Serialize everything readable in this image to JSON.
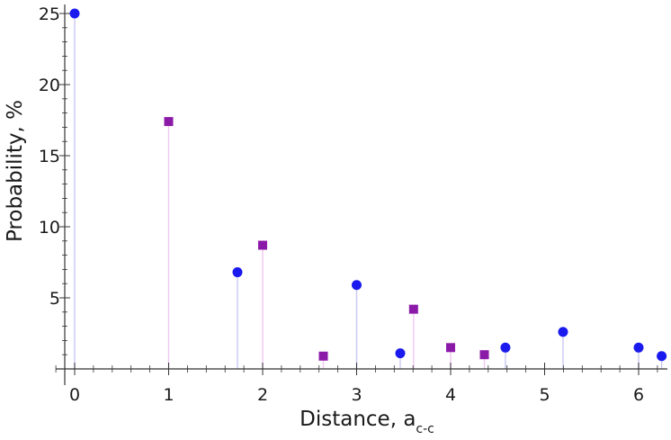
{
  "chart_data": {
    "type": "scatter",
    "xlabel": "Distance, a",
    "xlabel_subscript": "c-c",
    "ylabel": "Probability, %",
    "xlim": [
      -0.1,
      6.4
    ],
    "ylim": [
      0,
      25.8
    ],
    "x_ticks": [
      0,
      1,
      2,
      3,
      4,
      5,
      6
    ],
    "y_ticks": [
      5,
      10,
      15,
      20,
      25
    ],
    "grid": false,
    "stems": true,
    "series": [
      {
        "marker": "circle",
        "color": "#1a1aee",
        "stem_color": "#c8c8f5",
        "points": [
          {
            "x": 0,
            "y": 25.0
          },
          {
            "x": 1.732,
            "y": 6.8
          },
          {
            "x": 3.0,
            "y": 5.9
          },
          {
            "x": 3.464,
            "y": 1.1
          },
          {
            "x": 4.583,
            "y": 1.5
          },
          {
            "x": 5.196,
            "y": 2.6
          },
          {
            "x": 6.0,
            "y": 1.5
          },
          {
            "x": 6.245,
            "y": 0.9
          }
        ]
      },
      {
        "marker": "square",
        "color": "#8b1aa8",
        "stem_color": "#f0c8f0",
        "points": [
          {
            "x": 1.0,
            "y": 17.4
          },
          {
            "x": 2.0,
            "y": 8.7
          },
          {
            "x": 2.646,
            "y": 0.9
          },
          {
            "x": 3.606,
            "y": 4.2
          },
          {
            "x": 4.0,
            "y": 1.5
          },
          {
            "x": 4.359,
            "y": 1.0
          }
        ]
      }
    ]
  }
}
